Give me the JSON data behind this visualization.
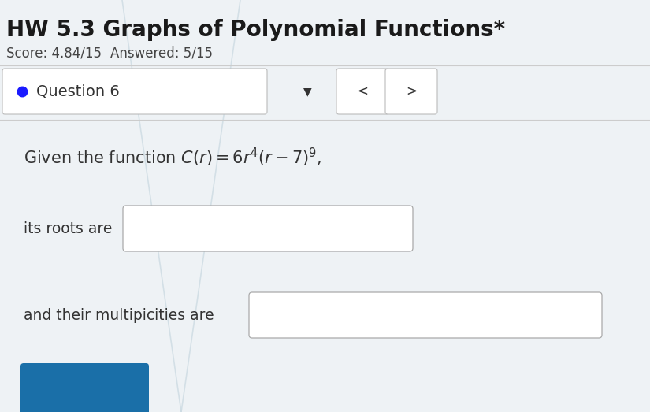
{
  "title": "HW 5.3 Graphs of Polynomial Functions*",
  "score_line_1": "Score: 4.84/15",
  "score_line_2": "Answered: 5/15",
  "question_label": "Question 6",
  "roots_label": "its roots are",
  "multiplicities_label": "and their multipicities are",
  "bg_color": "#eef2f5",
  "box_color": "#ffffff",
  "title_color": "#1a1a1a",
  "score_color": "#444444",
  "body_color": "#333333",
  "nav_arrow_color": "#333333",
  "dot_color": "#1a1aff",
  "separator_color": "#cccccc",
  "diagonal_color": "#c8d8e0",
  "title_fontsize": 20,
  "score_fontsize": 12,
  "question_fontsize": 14,
  "body_fontsize": 13.5
}
